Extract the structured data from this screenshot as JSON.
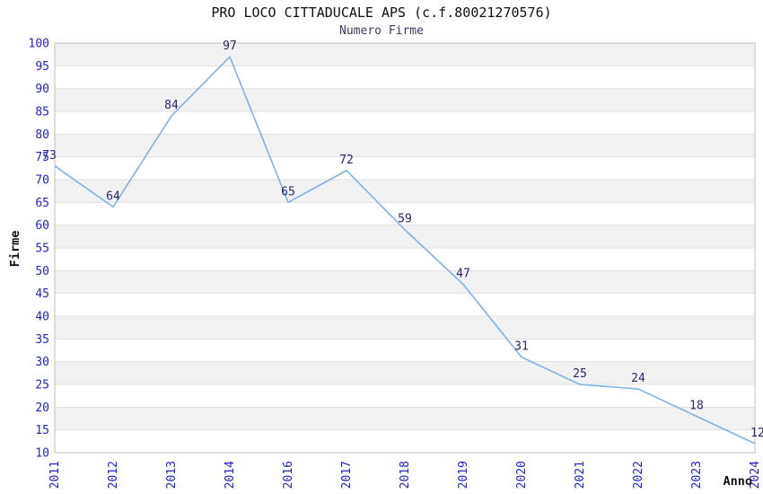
{
  "chart_data": {
    "type": "line",
    "title": "PRO LOCO CITTADUCALE APS (c.f.80021270576)",
    "subtitle": "Numero Firme",
    "xlabel": "Anno",
    "ylabel": "Firme",
    "categories": [
      "2011",
      "2012",
      "2013",
      "2014",
      "2016",
      "2017",
      "2018",
      "2019",
      "2020",
      "2021",
      "2022",
      "2023",
      "2024"
    ],
    "values": [
      73,
      64,
      84,
      97,
      65,
      72,
      59,
      47,
      31,
      25,
      24,
      18,
      12
    ],
    "ylim": [
      10,
      100
    ],
    "ytick_step": 5,
    "grid": "horizontal-gridlines-with-alternating-bands",
    "legend": "none",
    "point_labels_shown": true,
    "colors": {
      "line": "#7EB2E8",
      "tick_label": "#2222CC",
      "point_label": "#26266B",
      "band": "#F2F2F2",
      "gridline": "#E0E0E0",
      "border": "#C8C8C8",
      "title": "#111111",
      "subtitle": "#3D3D5C",
      "axis_label": "#111111",
      "background": "#FFFFFF"
    }
  }
}
